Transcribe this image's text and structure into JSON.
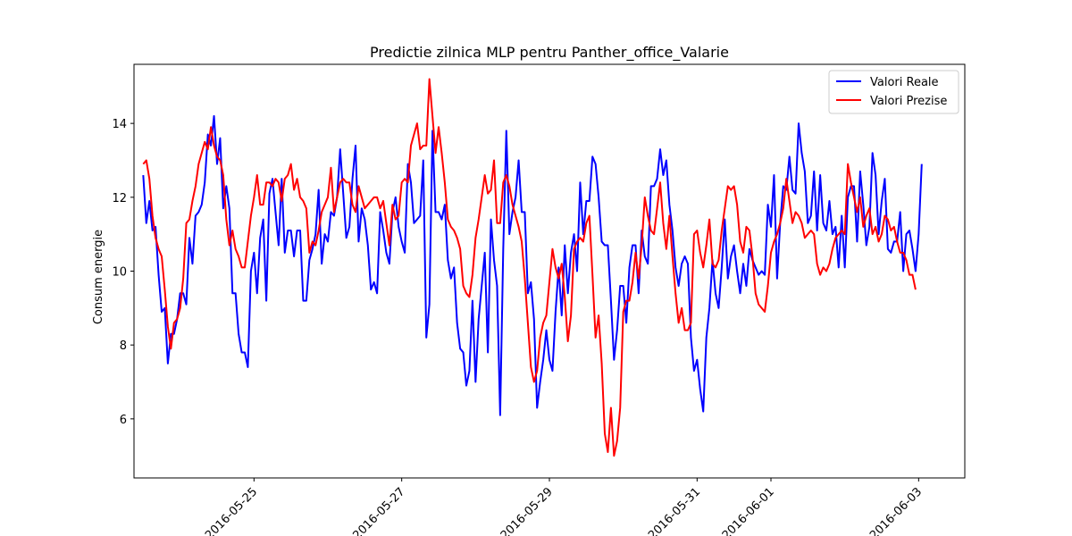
{
  "chart_data": {
    "type": "line",
    "title": "Predictie zilnica MLP pentru Panther_office_Valarie",
    "xlabel": "",
    "ylabel": "Consum energie",
    "xlim": [
      "2016-05-23 09:00",
      "2016-06-03 15:00"
    ],
    "ylim": [
      4.4,
      15.6
    ],
    "y_ticks": [
      6,
      8,
      10,
      12,
      14
    ],
    "x_ticks": [
      "2016-05-25",
      "2016-05-27",
      "2016-05-29",
      "2016-05-31",
      "2016-06-01",
      "2016-06-03"
    ],
    "grid": false,
    "legend_position": "top-right",
    "x_start": "2016-05-23 12:00",
    "x_step_hours": 1,
    "series": [
      {
        "name": "Valori Reale",
        "color": "#0000ff",
        "values": [
          12.6,
          11.3,
          11.9,
          11.1,
          11.2,
          9.9,
          8.9,
          9.0,
          7.5,
          8.3,
          8.3,
          8.7,
          9.4,
          9.4,
          9.1,
          10.9,
          10.2,
          11.5,
          11.6,
          11.8,
          12.4,
          13.7,
          13.4,
          14.2,
          12.9,
          13.6,
          11.7,
          12.3,
          11.7,
          9.4,
          9.4,
          8.3,
          7.8,
          7.8,
          7.4,
          10.0,
          10.5,
          9.4,
          10.9,
          11.4,
          9.2,
          12.1,
          12.5,
          11.6,
          10.7,
          12.5,
          10.5,
          11.1,
          11.1,
          10.4,
          11.1,
          11.1,
          9.2,
          9.2,
          10.3,
          10.6,
          11.0,
          12.2,
          10.2,
          11.0,
          10.8,
          11.6,
          11.5,
          12.0,
          13.3,
          12.1,
          10.9,
          11.2,
          12.5,
          13.4,
          10.8,
          11.7,
          11.4,
          10.7,
          9.5,
          9.7,
          9.4,
          11.6,
          11.1,
          10.5,
          10.2,
          11.6,
          12.0,
          11.2,
          10.8,
          10.5,
          12.9,
          12.4,
          11.3,
          11.4,
          11.5,
          13.0,
          8.2,
          9.1,
          13.8,
          11.6,
          11.6,
          11.4,
          11.8,
          10.3,
          9.8,
          10.1,
          8.6,
          7.9,
          7.8,
          6.9,
          7.3,
          9.2,
          7.0,
          8.7,
          9.6,
          10.5,
          7.8,
          11.4,
          10.3,
          9.6,
          6.1,
          10.6,
          13.8,
          11.0,
          11.6,
          12.0,
          13.0,
          11.6,
          11.6,
          9.4,
          9.7,
          8.7,
          6.3,
          7.0,
          7.6,
          8.4,
          7.6,
          7.3,
          8.9,
          10.1,
          8.8,
          10.7,
          9.4,
          10.5,
          11.0,
          10.0,
          12.4,
          11.0,
          11.9,
          11.9,
          13.1,
          12.9,
          12.0,
          10.8,
          10.7,
          10.7,
          9.2,
          7.6,
          8.4,
          9.6,
          9.6,
          8.6,
          10.1,
          10.7,
          10.7,
          9.4,
          11.1,
          10.4,
          10.2,
          12.3,
          12.3,
          12.5,
          13.3,
          12.6,
          13.0,
          11.8,
          11.1,
          10.1,
          9.6,
          10.2,
          10.4,
          10.2,
          8.2,
          7.3,
          7.6,
          6.8,
          6.2,
          8.2,
          9.0,
          10.3,
          9.4,
          9.0,
          10.1,
          11.4,
          9.8,
          10.4,
          10.7,
          10.0,
          9.4,
          10.2,
          9.6,
          10.6,
          10.3,
          10.1,
          9.9,
          10.0,
          9.9,
          11.8,
          11.2,
          12.6,
          9.8,
          11.3,
          12.3,
          12.2,
          13.1,
          12.2,
          12.1,
          14.0,
          13.2,
          12.7,
          11.3,
          11.5,
          12.7,
          11.1,
          12.6,
          11.3,
          11.1,
          11.9,
          11.0,
          11.2,
          10.1,
          11.5,
          10.1,
          12.0,
          12.3,
          12.3,
          10.8,
          12.7,
          11.8,
          10.7,
          11.2,
          13.2,
          12.6,
          11.0,
          11.9,
          12.5,
          10.6,
          10.5,
          10.8,
          10.8,
          11.6,
          10.0,
          11.0,
          11.1,
          10.6,
          10.0,
          11.0,
          12.9
        ]
      },
      {
        "name": "Valori Prezise",
        "color": "#ff0000",
        "values": [
          12.9,
          13.0,
          12.5,
          11.5,
          10.9,
          10.6,
          10.4,
          9.5,
          8.5,
          7.9,
          8.6,
          8.7,
          9.0,
          9.8,
          11.3,
          11.4,
          11.9,
          12.3,
          12.9,
          13.2,
          13.5,
          13.3,
          13.9,
          13.4,
          13.1,
          13.0,
          12.6,
          11.4,
          10.7,
          11.1,
          10.6,
          10.4,
          10.1,
          10.1,
          10.8,
          11.5,
          12.0,
          12.6,
          11.8,
          11.8,
          12.4,
          12.4,
          12.3,
          12.5,
          12.4,
          11.9,
          12.5,
          12.6,
          12.9,
          12.2,
          12.5,
          12.0,
          11.9,
          11.7,
          10.5,
          10.8,
          10.7,
          11.1,
          11.6,
          11.8,
          12.0,
          12.8,
          11.6,
          12.0,
          12.4,
          12.5,
          12.4,
          12.4,
          11.8,
          11.6,
          12.3,
          12.0,
          11.7,
          11.8,
          11.9,
          12.0,
          12.0,
          11.7,
          11.9,
          11.3,
          10.7,
          11.8,
          11.4,
          11.5,
          12.4,
          12.5,
          12.4,
          13.4,
          13.7,
          14.0,
          13.3,
          13.4,
          13.4,
          15.2,
          14.2,
          13.2,
          13.9,
          13.2,
          12.4,
          11.4,
          11.2,
          11.1,
          10.9,
          10.6,
          9.6,
          9.4,
          9.3,
          9.9,
          10.9,
          11.4,
          12.0,
          12.6,
          12.1,
          12.2,
          13.0,
          11.3,
          11.3,
          12.4,
          12.6,
          12.3,
          11.8,
          11.5,
          11.2,
          10.8,
          9.8,
          8.6,
          7.4,
          7.0,
          7.3,
          8.2,
          8.6,
          8.8,
          9.7,
          10.6,
          10.1,
          9.8,
          10.2,
          9.3,
          8.1,
          8.8,
          10.6,
          10.8,
          10.9,
          10.8,
          11.3,
          11.5,
          9.9,
          8.2,
          8.8,
          7.5,
          5.6,
          5.1,
          6.3,
          5.0,
          5.4,
          6.3,
          8.9,
          9.2,
          9.2,
          9.7,
          10.5,
          9.8,
          10.7,
          12.0,
          11.5,
          11.1,
          11.0,
          11.7,
          12.4,
          11.3,
          10.6,
          11.5,
          10.4,
          9.4,
          8.6,
          9.0,
          8.4,
          8.4,
          8.6,
          11.0,
          11.1,
          10.5,
          10.1,
          10.7,
          11.4,
          10.2,
          10.1,
          10.3,
          11.1,
          11.7,
          12.3,
          12.2,
          12.3,
          11.8,
          10.8,
          10.5,
          11.2,
          11.1,
          10.4,
          9.4,
          9.1,
          9.0,
          8.9,
          9.6,
          10.5,
          10.8,
          11.0,
          11.3,
          11.7,
          12.5,
          11.9,
          11.3,
          11.6,
          11.5,
          11.3,
          10.9,
          11.0,
          11.1,
          11.0,
          10.2,
          9.9,
          10.1,
          10.0,
          10.2,
          10.6,
          10.9,
          11.0,
          11.1,
          11.0,
          12.9,
          12.4,
          12.0,
          11.6,
          12.0,
          11.2,
          11.5,
          11.7,
          11.0,
          11.2,
          10.8,
          11.0,
          11.5,
          11.4,
          11.1,
          11.2,
          10.8,
          10.5,
          10.5,
          10.3,
          9.9,
          9.9,
          9.5
        ]
      }
    ]
  }
}
